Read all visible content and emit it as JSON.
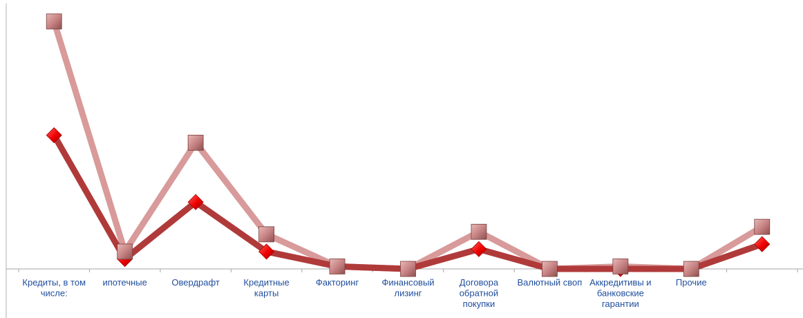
{
  "chart_data": {
    "type": "line",
    "categories": [
      "Кредиты, в том\nчисле:",
      "ипотечные",
      "Овердрафт",
      "Кредитные\nкарты",
      "Факторинг",
      "Финансовый\nлизинг",
      "Договора\nобратной\nпокупки",
      "Валютный своп",
      "Аккредитивы и\nбанковские\nгарантии",
      "Прочие",
      ""
    ],
    "series": [
      {
        "marker": "diamond",
        "color": "#b03a3a",
        "marker_color": "#ff0000",
        "values": [
          0.54,
          0.04,
          0.27,
          0.07,
          0.01,
          0.0,
          0.08,
          0.0,
          0.0,
          0.0,
          0.1
        ]
      },
      {
        "marker": "square",
        "color": "#d89a9a",
        "marker_color": "#c07878",
        "values": [
          1.0,
          0.07,
          0.51,
          0.14,
          0.01,
          0.0,
          0.15,
          0.0,
          0.01,
          0.0,
          0.17
        ]
      }
    ],
    "ylim": [
      0,
      1.03
    ],
    "grid": false,
    "legend": "none",
    "title": "",
    "xlabel": "",
    "ylabel": ""
  }
}
